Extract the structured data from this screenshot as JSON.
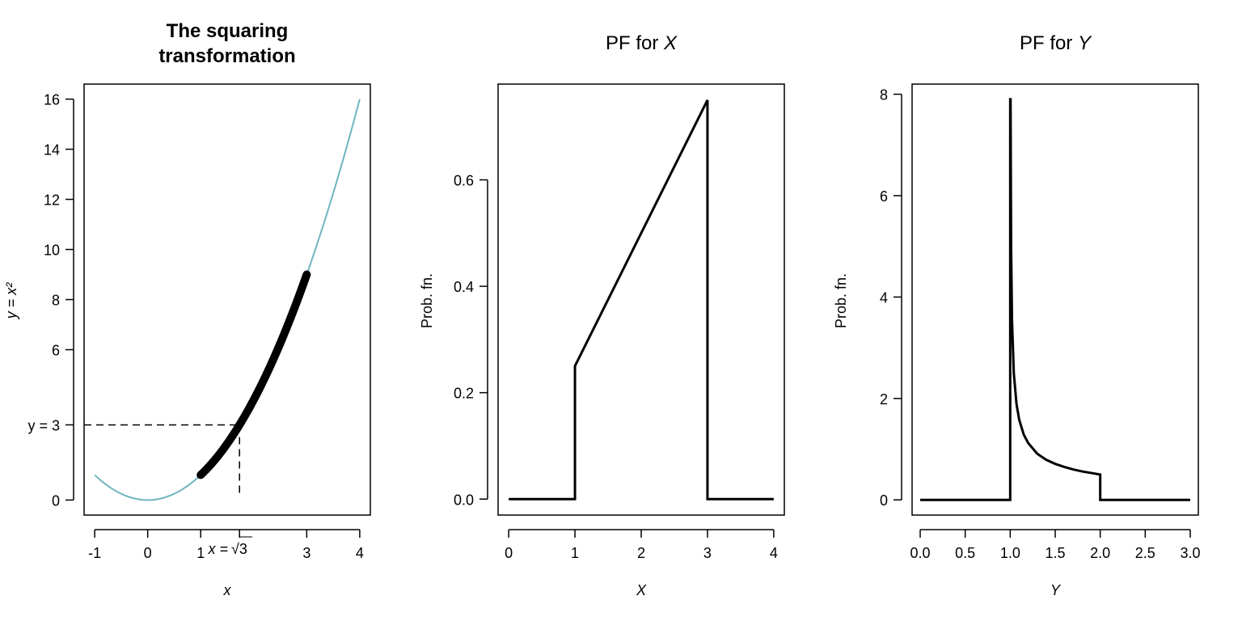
{
  "chart_data": [
    {
      "type": "line",
      "title_lines": [
        "The squaring",
        "transformation"
      ],
      "xlabel": "x",
      "ylabel": "y = x²",
      "xlim": [
        -1.2,
        4.2
      ],
      "ylim": [
        -0.6,
        16.6
      ],
      "x_ticks": [
        -1,
        0,
        1,
        3,
        4
      ],
      "y_ticks": [
        0,
        6,
        8,
        10,
        12,
        14,
        16
      ],
      "x_special_tick": {
        "value": 1.732,
        "label_prefix": "x = ",
        "label_radical": "3"
      },
      "y_special_tick": {
        "value": 3,
        "label": "y = 3"
      },
      "series": [
        {
          "role": "full-curve",
          "formula": "y = x^2",
          "x_range": [
            -1,
            4
          ],
          "color": "#6fb5bf"
        },
        {
          "role": "highlighted-segment",
          "formula": "y = x^2",
          "x_range": [
            1,
            3
          ],
          "color": "#000000"
        }
      ],
      "guides": {
        "x": 1.732,
        "y": 3,
        "style": "dashed"
      }
    },
    {
      "type": "line",
      "title": "PF for ",
      "title_var": "X",
      "xlabel": "X",
      "ylabel": "Prob. fn.",
      "xlim": [
        -0.16,
        4.16
      ],
      "ylim": [
        -0.03,
        0.78
      ],
      "x_ticks": [
        0,
        1,
        2,
        3,
        4
      ],
      "y_ticks": [
        "0.0",
        "0.2",
        "0.4",
        "0.6"
      ],
      "series": [
        {
          "x": [
            0,
            1,
            1,
            3,
            3,
            4
          ],
          "y": [
            0,
            0,
            0.25,
            0.75,
            0,
            0
          ],
          "color": "#000000"
        }
      ]
    },
    {
      "type": "line",
      "title": "PF for ",
      "title_var": "Y",
      "xlabel": "Y",
      "ylabel": "Prob. fn.",
      "xlim": [
        -0.09,
        3.09
      ],
      "ylim": [
        -0.3,
        8.2
      ],
      "x_ticks": [
        "0.0",
        "0.5",
        "1.0",
        "1.5",
        "2.0",
        "2.5",
        "3.0"
      ],
      "y_ticks": [
        0,
        2,
        4,
        6,
        8
      ],
      "series": [
        {
          "formula": "f(y) = 1/(2*sqrt(y-1)) on 1 < y < 2, 0 elsewhere",
          "x": [
            0,
            1,
            1,
            1.004,
            1.01,
            1.02,
            1.04,
            1.07,
            1.1,
            1.15,
            1.2,
            1.3,
            1.4,
            1.5,
            1.6,
            1.7,
            1.8,
            1.9,
            2,
            2,
            3
          ],
          "y": [
            0,
            0,
            7.9,
            7.9,
            5.0,
            3.54,
            2.5,
            1.89,
            1.58,
            1.29,
            1.12,
            0.91,
            0.79,
            0.71,
            0.65,
            0.6,
            0.56,
            0.53,
            0.5,
            0,
            0
          ],
          "color": "#000000"
        }
      ]
    }
  ]
}
